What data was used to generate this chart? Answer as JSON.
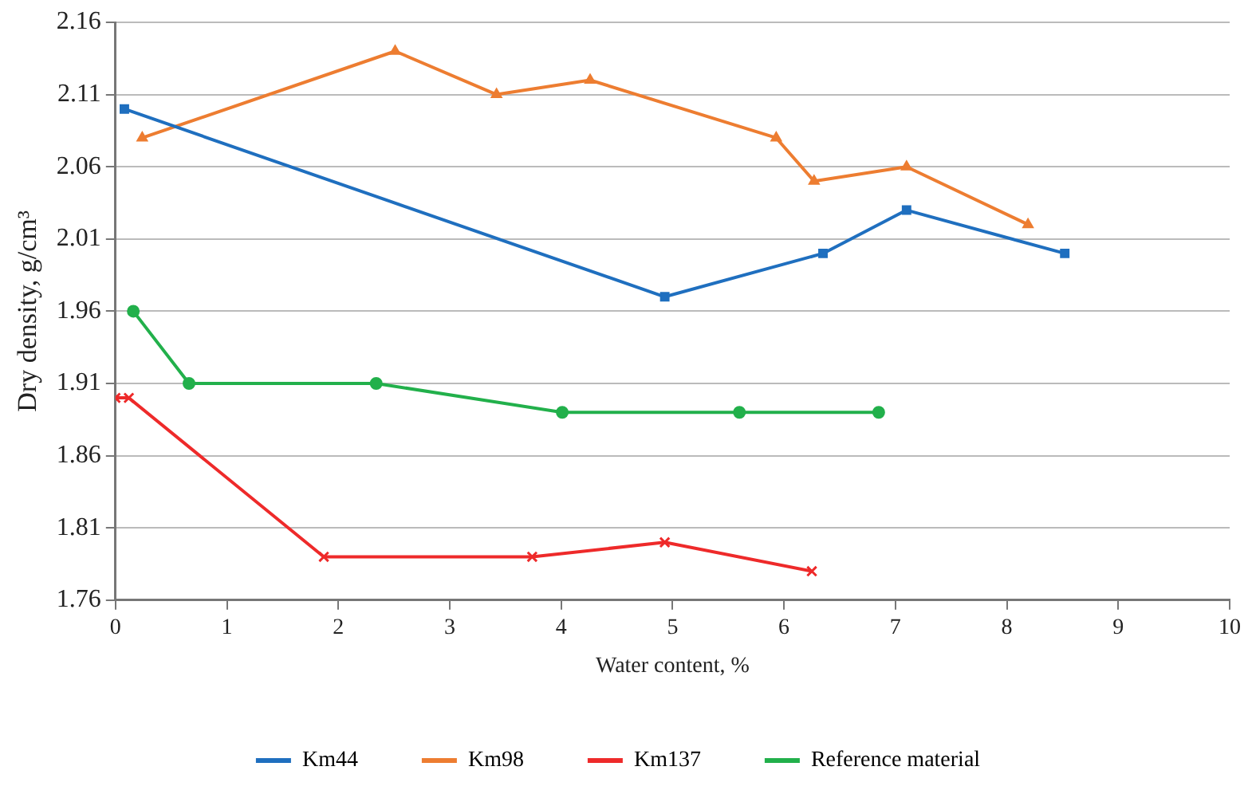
{
  "chart_data": {
    "type": "line",
    "xlabel": "Water content, %",
    "ylabel": "Dry density, g/cm³",
    "xlim": [
      0,
      10
    ],
    "xticks": [
      0,
      1,
      2,
      3,
      4,
      5,
      6,
      7,
      8,
      9,
      10
    ],
    "ylim": [
      1.76,
      2.16
    ],
    "yticks": [
      1.76,
      1.81,
      1.86,
      1.91,
      1.96,
      2.01,
      2.06,
      2.11,
      2.16
    ],
    "grid": "y",
    "legend": "bottom",
    "line_style": "solid",
    "series": [
      {
        "name": "Km44",
        "color": "#1f6fbf",
        "marker": "square",
        "x": [
          0.08,
          4.93,
          6.35,
          7.1,
          8.52
        ],
        "values": [
          2.1,
          1.97,
          2.0,
          2.03,
          2.0
        ]
      },
      {
        "name": "Km98",
        "color": "#ed7d31",
        "marker": "triangle",
        "x": [
          0.24,
          2.51,
          3.42,
          4.26,
          5.93,
          6.27,
          7.1,
          8.19
        ],
        "values": [
          2.08,
          2.14,
          2.11,
          2.12,
          2.08,
          2.05,
          2.06,
          2.02
        ]
      },
      {
        "name": "Km137",
        "color": "#ee2a2a",
        "marker": "cross",
        "x": [
          0.0,
          0.12,
          1.87,
          3.74,
          4.93,
          6.25
        ],
        "values": [
          1.9,
          1.9,
          1.79,
          1.79,
          1.8,
          1.78
        ]
      },
      {
        "name": "Reference material",
        "color": "#22b04b",
        "marker": "circle",
        "x": [
          0.16,
          0.66,
          2.34,
          4.01,
          5.6,
          6.85
        ],
        "values": [
          1.96,
          1.91,
          1.91,
          1.89,
          1.89,
          1.89
        ]
      }
    ]
  }
}
